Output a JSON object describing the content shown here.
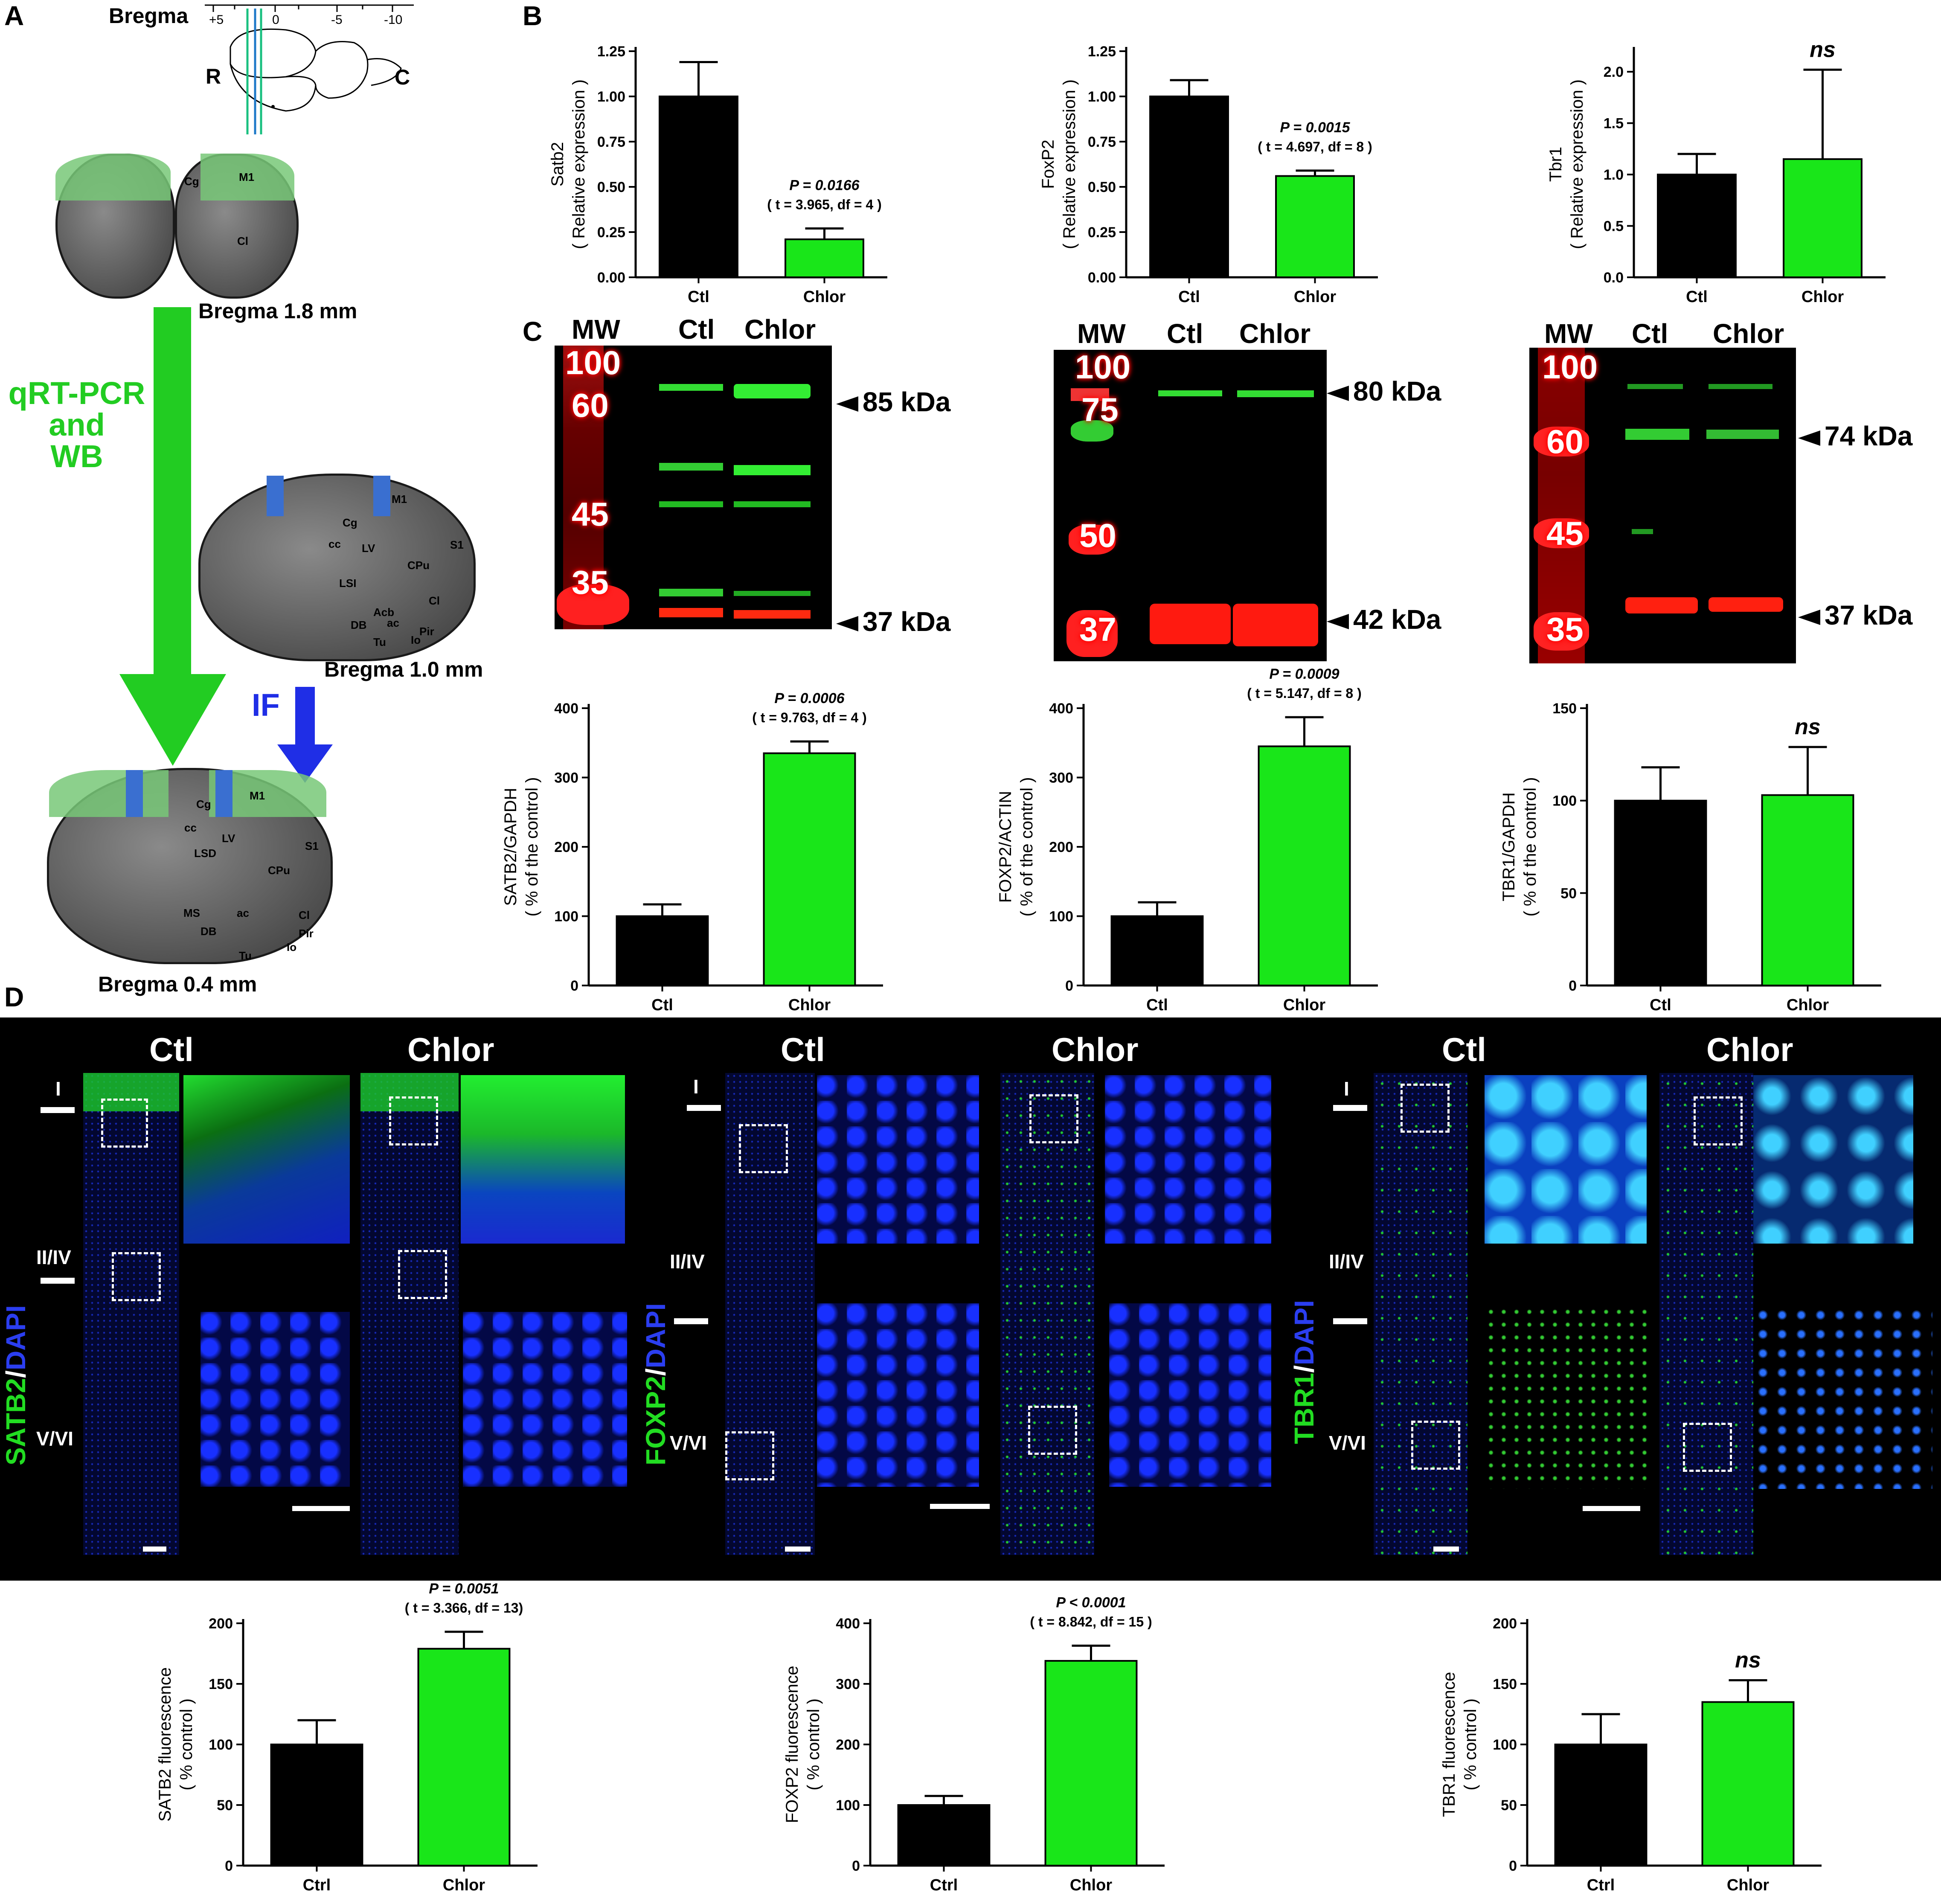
{
  "panel_labels": {
    "a": "A",
    "b": "B",
    "c": "C",
    "d": "D"
  },
  "panel_a": {
    "bregma_title": "Bregma",
    "scale_ticks": [
      "+5",
      "0",
      "-5",
      "-10"
    ],
    "rostral": "R",
    "caudal": "C",
    "section1": "Bregma 1.8 mm",
    "section2": "Bregma 1.0 mm",
    "section3": "Bregma 0.4 mm",
    "method_green_1": "qRT-PCR",
    "method_green_2": "and",
    "method_green_3": "WB",
    "method_blue": "IF",
    "regions_s1": [
      "Cg",
      "M1",
      "Cl"
    ],
    "regions_s2": [
      "M1",
      "Cg",
      "cc",
      "LV",
      "S1",
      "CPu",
      "LSI",
      "Cl",
      "Acb",
      "ac",
      "DB",
      "Pir",
      "Tu",
      "Io"
    ],
    "regions_s3": [
      "M1",
      "Cg",
      "cc",
      "LV",
      "LSD",
      "S1",
      "CPu",
      "MS",
      "ac",
      "Cl",
      "DB",
      "Pir",
      "Tu",
      "Io"
    ]
  },
  "colors": {
    "ctl": "#000000",
    "chlor": "#19e619",
    "dapi": "#1e2bd6",
    "green_method": "#22cc22",
    "blue_method": "#1f2ee6"
  },
  "panel_c_blots": [
    {
      "lanes": [
        "MW",
        "Ctl",
        "Chlor"
      ],
      "mw": [
        "100",
        "60",
        "45",
        "35"
      ],
      "kda": [
        "85 kDa",
        "37 kDa"
      ]
    },
    {
      "lanes": [
        "MW",
        "Ctl",
        "Chlor"
      ],
      "mw": [
        "100",
        "75",
        "50",
        "37"
      ],
      "kda": [
        "80 kDa",
        "42 kDa"
      ]
    },
    {
      "lanes": [
        "MW",
        "Ctl",
        "Chlor"
      ],
      "mw": [
        "100",
        "60",
        "45",
        "35"
      ],
      "kda": [
        "74 kDa",
        "37 kDa"
      ]
    }
  ],
  "panel_d": {
    "headers": [
      "Ctl",
      "Chlor"
    ],
    "markers": [
      {
        "name": "SATB2",
        "sep": "/",
        "dapi": "DAPI"
      },
      {
        "name": "FOXP2",
        "sep": "/",
        "dapi": "DAPI"
      },
      {
        "name": "TBR1",
        "sep": "/",
        "dapi": "DAPI"
      }
    ],
    "layers": [
      "I",
      "II/IV",
      "V/VI"
    ]
  },
  "chart_data": [
    {
      "id": "B1",
      "type": "bar",
      "categories": [
        "Ctl",
        "Chlor"
      ],
      "values": [
        1.0,
        0.21
      ],
      "errors": [
        0.19,
        0.06
      ],
      "ylabel_1": "Satb2",
      "ylabel_2": "( Relative expression )",
      "ylim": [
        0,
        1.25
      ],
      "ticks": [
        "0.00",
        "0.25",
        "0.50",
        "0.75",
        "1.00",
        "1.25"
      ],
      "tickvals": [
        0,
        0.25,
        0.5,
        0.75,
        1.0,
        1.25
      ],
      "annotation_1": "P = 0.0166",
      "annotation_2": "( t = 3.965, df = 4 )"
    },
    {
      "id": "B2",
      "type": "bar",
      "categories": [
        "Ctl",
        "Chlor"
      ],
      "values": [
        1.0,
        0.56
      ],
      "errors": [
        0.09,
        0.03
      ],
      "ylabel_1": "FoxP2",
      "ylabel_2": "( Relative expression )",
      "ylim": [
        0,
        1.25
      ],
      "ticks": [
        "0.00",
        "0.25",
        "0.50",
        "0.75",
        "1.00",
        "1.25"
      ],
      "tickvals": [
        0,
        0.25,
        0.5,
        0.75,
        1.0,
        1.25
      ],
      "annotation_1": "P = 0.0015",
      "annotation_2": "( t = 4.697, df = 8 )"
    },
    {
      "id": "B3",
      "type": "bar",
      "categories": [
        "Ctl",
        "Chlor"
      ],
      "values": [
        1.0,
        1.15
      ],
      "errors": [
        0.2,
        0.87
      ],
      "ylabel_1": "Tbr1",
      "ylabel_2": "( Relative expression )",
      "ylim": [
        0,
        2.2
      ],
      "ticks": [
        "0.0",
        "0.5",
        "1.0",
        "1.5",
        "2.0"
      ],
      "tickvals": [
        0,
        0.5,
        1.0,
        1.5,
        2.0
      ],
      "annotation_1": "ns",
      "annotation_2": ""
    },
    {
      "id": "C1",
      "type": "bar",
      "categories": [
        "Ctl",
        "Chlor"
      ],
      "values": [
        100,
        335
      ],
      "errors": [
        17,
        17
      ],
      "ylabel_1": "SATB2/GAPDH",
      "ylabel_2": "( % of the control )",
      "ylim": [
        0,
        400
      ],
      "ticks": [
        "0",
        "100",
        "200",
        "300",
        "400"
      ],
      "tickvals": [
        0,
        100,
        200,
        300,
        400
      ],
      "annotation_1": "P = 0.0006",
      "annotation_2": "( t = 9.763, df = 4 )"
    },
    {
      "id": "C2",
      "type": "bar",
      "categories": [
        "Ctl",
        "Chlor"
      ],
      "values": [
        100,
        345
      ],
      "errors": [
        20,
        42
      ],
      "ylabel_1": "FOXP2/ACTIN",
      "ylabel_2": "( % of the control )",
      "ylim": [
        0,
        400
      ],
      "ticks": [
        "0",
        "100",
        "200",
        "300",
        "400"
      ],
      "tickvals": [
        0,
        100,
        200,
        300,
        400
      ],
      "annotation_1": "P = 0.0009",
      "annotation_2": "( t = 5.147, df = 8 )"
    },
    {
      "id": "C3",
      "type": "bar",
      "categories": [
        "Ctl",
        "Chlor"
      ],
      "values": [
        100,
        103
      ],
      "errors": [
        18,
        26
      ],
      "ylabel_1": "TBR1/GAPDH",
      "ylabel_2": "( % of the control )",
      "ylim": [
        0,
        150
      ],
      "ticks": [
        "0",
        "50",
        "100",
        "150"
      ],
      "tickvals": [
        0,
        50,
        100,
        150
      ],
      "annotation_1": "ns",
      "annotation_2": ""
    },
    {
      "id": "D1",
      "type": "bar",
      "categories": [
        "Ctrl",
        "Chlor"
      ],
      "values": [
        100,
        179
      ],
      "errors": [
        20,
        14
      ],
      "ylabel_1": "SATB2 fluorescence",
      "ylabel_2": "( % control )",
      "ylim": [
        0,
        200
      ],
      "ticks": [
        "0",
        "50",
        "100",
        "150",
        "200"
      ],
      "tickvals": [
        0,
        50,
        100,
        150,
        200
      ],
      "annotation_1": "P = 0.0051",
      "annotation_2": "( t = 3.366, df = 13)"
    },
    {
      "id": "D2",
      "type": "bar",
      "categories": [
        "Ctrl",
        "Chlor"
      ],
      "values": [
        100,
        338
      ],
      "errors": [
        15,
        25
      ],
      "ylabel_1": "FOXP2 fluorescence",
      "ylabel_2": "( % control )",
      "ylim": [
        0,
        400
      ],
      "ticks": [
        "0",
        "100",
        "200",
        "300",
        "400"
      ],
      "tickvals": [
        0,
        100,
        200,
        300,
        400
      ],
      "annotation_1": "P < 0.0001",
      "annotation_2": "( t = 8.842, df = 15 )"
    },
    {
      "id": "D3",
      "type": "bar",
      "categories": [
        "Ctrl",
        "Chlor"
      ],
      "values": [
        100,
        135
      ],
      "errors": [
        25,
        18
      ],
      "ylabel_1": "TBR1 fluorescence",
      "ylabel_2": "( % control )",
      "ylim": [
        0,
        200
      ],
      "ticks": [
        "0",
        "50",
        "100",
        "150",
        "200"
      ],
      "tickvals": [
        0,
        50,
        100,
        150,
        200
      ],
      "annotation_1": "ns",
      "annotation_2": ""
    }
  ]
}
